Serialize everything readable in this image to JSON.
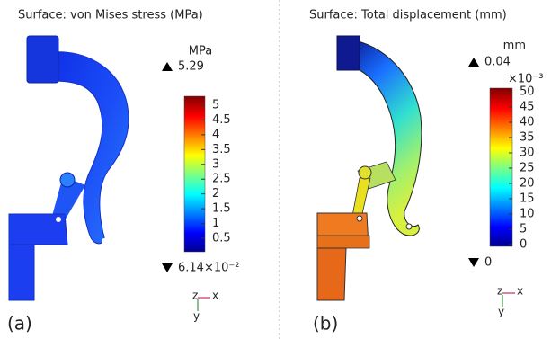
{
  "panels": [
    {
      "title": "Surface: von Mises stress (MPa)",
      "unit": "MPa",
      "max": "5.29",
      "min": "6.14×10⁻²",
      "colorbar_ticks": [
        "0.5",
        "1",
        "1.5",
        "2",
        "2.5",
        "3",
        "3.5",
        "4",
        "4.5",
        "5"
      ],
      "axes": {
        "z": "z",
        "x": "x",
        "y": "y"
      },
      "label": "(a)"
    },
    {
      "title": "Surface: Total displacement (mm)",
      "unit": "mm",
      "max": "0.04",
      "scale": "×10⁻³",
      "min": "0",
      "colorbar_ticks": [
        "0",
        "5",
        "10",
        "15",
        "20",
        "25",
        "30",
        "35",
        "40",
        "45",
        "50"
      ],
      "axes": {
        "z": "z",
        "x": "x",
        "y": "y"
      },
      "label": "(b)"
    }
  ]
}
